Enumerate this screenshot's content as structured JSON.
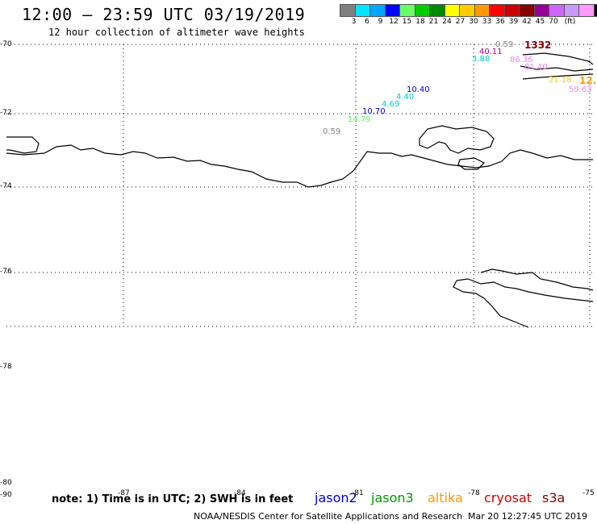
{
  "header": {
    "title": "12:00 — 23:59 UTC 03/19/2019",
    "subtitle": "12 hour collection of altimeter wave heights"
  },
  "legend": {
    "colors": [
      "#808080",
      "#00e5ff",
      "#00a5ff",
      "#0000ff",
      "#66ff66",
      "#00cc00",
      "#008800",
      "#ffff00",
      "#ffcc00",
      "#ff9900",
      "#ff0000",
      "#cc0000",
      "#880000",
      "#990099",
      "#cc66ff",
      "#cc99ff",
      "#ff99ff",
      "#000000"
    ],
    "labels": [
      "3",
      "6",
      "9",
      "12",
      "15",
      "18",
      "21",
      "24",
      "27",
      "30",
      "33",
      "36",
      "39",
      "42",
      "45",
      "70",
      "(ft)"
    ]
  },
  "latitude_labels": [
    "-70",
    "-72",
    "-74",
    "-76",
    "-78",
    "-80"
  ],
  "longitude_labels": [
    "-90",
    "-87",
    "-84",
    "-81",
    "-78",
    "-75"
  ],
  "wave_heights": [
    {
      "text": "0.59",
      "color": "#808080"
    },
    {
      "text": "14.79",
      "color": "#66ee66"
    },
    {
      "text": "10.70",
      "color": "#0000cc"
    },
    {
      "text": "4.69",
      "color": "#00cccc"
    },
    {
      "text": "4.40",
      "color": "#00cccc"
    },
    {
      "text": "10.40",
      "color": "#0000cc"
    },
    {
      "text": "0.59",
      "color": "#808080"
    },
    {
      "text": "40.11",
      "color": "#990099"
    },
    {
      "text": "3.88",
      "color": "#00cccc"
    },
    {
      "text": "1332",
      "color": "#880000"
    },
    {
      "text": "86.36",
      "color": "#ee88ee"
    },
    {
      "text": "81.40",
      "color": "#ee88ee"
    },
    {
      "text": "21.18",
      "color": "#ffcc00"
    },
    {
      "text": "12.",
      "color": "#ff9900"
    },
    {
      "text": "59.63",
      "color": "#ee88ee"
    }
  ],
  "note": "note: 1) Time is in UTC; 2) SWH is in feet",
  "satellites": [
    {
      "name": "jason2",
      "color": "#0000cc"
    },
    {
      "name": "jason3",
      "color": "#009900"
    },
    {
      "name": "altika",
      "color": "#ff9900"
    },
    {
      "name": "cryosat",
      "color": "#cc0000"
    },
    {
      "name": "s3a",
      "color": "#880000"
    }
  ],
  "footer": {
    "credit": "NOAA/NESDIS Center for Satellite Applications and Research",
    "timestamp": "Mar 20 12:27:45 UTC 2019"
  }
}
